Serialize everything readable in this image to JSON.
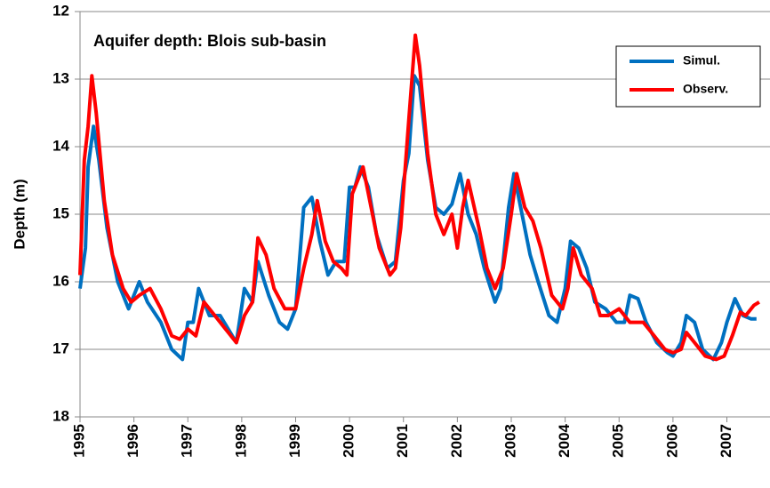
{
  "chart_data": {
    "type": "line",
    "title": "Aquifer depth: Blois sub-basin",
    "y_label": "Depth (m)",
    "xlim": [
      1995,
      2007.8
    ],
    "xticks": [
      1995,
      1996,
      1997,
      1998,
      1999,
      2000,
      2001,
      2002,
      2003,
      2004,
      2005,
      2006,
      2007
    ],
    "ylim": [
      12,
      18
    ],
    "yticks": [
      12,
      13,
      14,
      15,
      16,
      17,
      18
    ],
    "y_inverted": true,
    "grid": true,
    "legend": "upper-right",
    "series": [
      {
        "name": "Simul.",
        "color": "#0070c0",
        "x": [
          1995.0,
          1995.1,
          1995.15,
          1995.25,
          1995.35,
          1995.5,
          1995.7,
          1995.9,
          1996.1,
          1996.25,
          1996.5,
          1996.7,
          1996.9,
          1997.0,
          1997.1,
          1997.2,
          1997.4,
          1997.6,
          1997.9,
          1998.05,
          1998.2,
          1998.3,
          1998.5,
          1998.7,
          1998.85,
          1999.0,
          1999.15,
          1999.3,
          1999.45,
          1999.6,
          1999.75,
          1999.9,
          2000.0,
          2000.1,
          2000.2,
          2000.35,
          2000.5,
          2000.7,
          2000.85,
          2001.0,
          2001.1,
          2001.2,
          2001.3,
          2001.45,
          2001.6,
          2001.75,
          2001.9,
          2002.05,
          2002.2,
          2002.35,
          2002.5,
          2002.7,
          2002.8,
          2002.95,
          2003.05,
          2003.2,
          2003.35,
          2003.5,
          2003.7,
          2003.85,
          2004.0,
          2004.1,
          2004.25,
          2004.4,
          2004.55,
          2004.75,
          2004.95,
          2005.1,
          2005.2,
          2005.35,
          2005.5,
          2005.7,
          2005.9,
          2006.0,
          2006.15,
          2006.25,
          2006.4,
          2006.55,
          2006.75,
          2006.9,
          2007.0,
          2007.15,
          2007.3,
          2007.45,
          2007.55
        ],
        "values": [
          16.1,
          15.5,
          14.3,
          13.7,
          14.2,
          15.2,
          16.0,
          16.4,
          16.0,
          16.3,
          16.6,
          17.0,
          17.15,
          16.6,
          16.6,
          16.1,
          16.5,
          16.5,
          16.9,
          16.1,
          16.3,
          15.7,
          16.2,
          16.6,
          16.7,
          16.4,
          14.9,
          14.75,
          15.4,
          15.9,
          15.7,
          15.7,
          14.6,
          14.6,
          14.3,
          14.6,
          15.3,
          15.8,
          15.7,
          14.5,
          14.1,
          12.95,
          13.1,
          14.2,
          14.9,
          15.0,
          14.85,
          14.4,
          15.0,
          15.3,
          15.8,
          16.3,
          16.1,
          14.9,
          14.4,
          15.0,
          15.6,
          16.0,
          16.5,
          16.6,
          16.1,
          15.4,
          15.5,
          15.8,
          16.3,
          16.4,
          16.6,
          16.6,
          16.2,
          16.25,
          16.6,
          16.9,
          17.05,
          17.1,
          16.9,
          16.5,
          16.6,
          17.0,
          17.15,
          16.9,
          16.6,
          16.25,
          16.5,
          16.55,
          16.55
        ]
      },
      {
        "name": "Observ.",
        "color": "#ff0000",
        "x": [
          1995.0,
          1995.08,
          1995.15,
          1995.22,
          1995.3,
          1995.45,
          1995.6,
          1995.8,
          1995.95,
          1996.1,
          1996.3,
          1996.5,
          1996.7,
          1996.85,
          1997.0,
          1997.15,
          1997.3,
          1997.5,
          1997.7,
          1997.9,
          1998.05,
          1998.2,
          1998.3,
          1998.45,
          1998.6,
          1998.8,
          1999.0,
          1999.15,
          1999.3,
          1999.4,
          1999.55,
          1999.7,
          1999.85,
          1999.95,
          2000.05,
          2000.15,
          2000.25,
          2000.4,
          2000.55,
          2000.75,
          2000.85,
          2000.95,
          2001.1,
          2001.22,
          2001.3,
          2001.45,
          2001.6,
          2001.75,
          2001.9,
          2002.0,
          2002.1,
          2002.2,
          2002.4,
          2002.55,
          2002.7,
          2002.85,
          2003.0,
          2003.1,
          2003.25,
          2003.4,
          2003.55,
          2003.75,
          2003.95,
          2004.05,
          2004.15,
          2004.3,
          2004.5,
          2004.65,
          2004.8,
          2005.0,
          2005.2,
          2005.45,
          2005.65,
          2005.85,
          2006.0,
          2006.15,
          2006.25,
          2006.4,
          2006.6,
          2006.8,
          2006.95,
          2007.1,
          2007.25,
          2007.35,
          2007.5,
          2007.6
        ],
        "values": [
          15.9,
          14.2,
          13.7,
          12.95,
          13.5,
          14.8,
          15.6,
          16.1,
          16.3,
          16.2,
          16.1,
          16.4,
          16.8,
          16.85,
          16.7,
          16.8,
          16.3,
          16.5,
          16.7,
          16.9,
          16.5,
          16.3,
          15.35,
          15.6,
          16.1,
          16.4,
          16.4,
          15.8,
          15.3,
          14.8,
          15.4,
          15.7,
          15.8,
          15.9,
          14.7,
          14.5,
          14.3,
          14.9,
          15.5,
          15.9,
          15.8,
          15.2,
          13.6,
          12.35,
          12.8,
          14.1,
          15.0,
          15.3,
          15.0,
          15.5,
          14.9,
          14.5,
          15.2,
          15.8,
          16.1,
          15.8,
          15.0,
          14.4,
          14.9,
          15.1,
          15.5,
          16.2,
          16.4,
          16.1,
          15.5,
          15.9,
          16.1,
          16.5,
          16.5,
          16.4,
          16.6,
          16.6,
          16.8,
          17.0,
          17.05,
          17.0,
          16.75,
          16.9,
          17.1,
          17.15,
          17.1,
          16.8,
          16.45,
          16.5,
          16.35,
          16.3
        ]
      }
    ]
  }
}
